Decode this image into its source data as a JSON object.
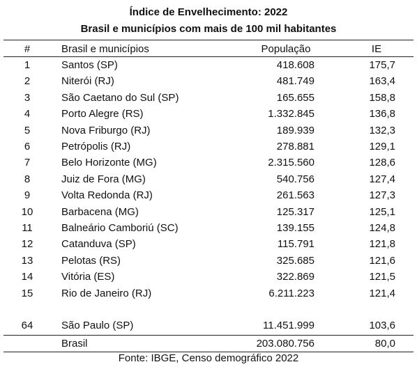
{
  "title": {
    "line1": "Índice de Envelhecimento: 2022",
    "line2": "Brasil e municípios com mais de 100 mil habitantes"
  },
  "table": {
    "headers": {
      "num": "#",
      "name": "Brasil e municípios",
      "population": "População",
      "ie": "IE"
    },
    "rows": [
      {
        "num": "1",
        "name": "Santos (SP)",
        "population": "418.608",
        "ie": "175,7"
      },
      {
        "num": "2",
        "name": "Niterói (RJ)",
        "population": "481.749",
        "ie": "163,4"
      },
      {
        "num": "3",
        "name": "São Caetano do Sul (SP)",
        "population": "165.655",
        "ie": "158,8"
      },
      {
        "num": "4",
        "name": "Porto Alegre (RS)",
        "population": "1.332.845",
        "ie": "136,8"
      },
      {
        "num": "5",
        "name": "Nova Friburgo (RJ)",
        "population": "189.939",
        "ie": "132,3"
      },
      {
        "num": "6",
        "name": "Petrópolis (RJ)",
        "population": "278.881",
        "ie": "129,1"
      },
      {
        "num": "7",
        "name": "Belo Horizonte (MG)",
        "population": "2.315.560",
        "ie": "128,6"
      },
      {
        "num": "8",
        "name": "Juiz de Fora (MG)",
        "population": "540.756",
        "ie": "127,4"
      },
      {
        "num": "9",
        "name": "Volta Redonda (RJ)",
        "population": "261.563",
        "ie": "127,3"
      },
      {
        "num": "10",
        "name": "Barbacena (MG)",
        "population": "125.317",
        "ie": "125,1"
      },
      {
        "num": "11",
        "name": "Balneário Camboriú (SC)",
        "population": "139.155",
        "ie": "124,8"
      },
      {
        "num": "12",
        "name": "Catanduva (SP)",
        "population": "115.791",
        "ie": "121,8"
      },
      {
        "num": "13",
        "name": "Pelotas (RS)",
        "population": "325.685",
        "ie": "121,6"
      },
      {
        "num": "14",
        "name": "Vitória (ES)",
        "population": "322.869",
        "ie": "121,5"
      },
      {
        "num": "15",
        "name": "Rio de Janeiro (RJ)",
        "population": "6.211.223",
        "ie": "121,4"
      },
      {
        "num": "64",
        "name": "São Paulo (SP)",
        "population": "11.451.999",
        "ie": "103,6"
      }
    ],
    "total": {
      "num": "",
      "name": "Brasil",
      "population": "203.080.756",
      "ie": "80,0"
    }
  },
  "source": "Fonte: IBGE, Censo demográfico 2022"
}
